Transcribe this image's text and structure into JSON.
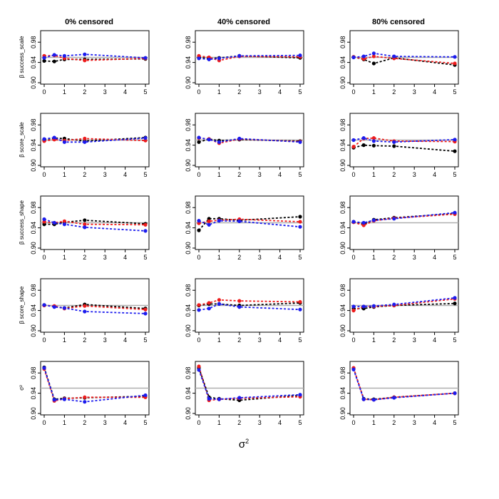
{
  "figure": {
    "col_titles": [
      "0% censored",
      "40% censored",
      "80% censored"
    ],
    "row_labels": [
      "β success_scale",
      "β score_scale",
      "β success_shape",
      "β score_shape",
      "σ²"
    ],
    "x_label_base": "σ",
    "x_label_sup": "2"
  },
  "colors": {
    "series_1": "#000000",
    "series_2": "#ee1c1c",
    "series_3": "#1c1cee",
    "reference": "#b0b0b0"
  },
  "chart_data": {
    "type": "line",
    "x": [
      0,
      0.5,
      1,
      2,
      5
    ],
    "x_ticks": [
      0,
      1,
      2,
      3,
      4,
      5
    ],
    "y_ticks": [
      0.9,
      0.94,
      0.98
    ],
    "xlim": [
      0,
      5
    ],
    "ylim": [
      0.9,
      1.0
    ],
    "reference_line": 0.95,
    "series_colors": [
      "black",
      "red",
      "blue"
    ],
    "panels": [
      {
        "row": 0,
        "col": 0,
        "series": [
          [
            0.943,
            0.942,
            0.946,
            0.946,
            0.947
          ],
          [
            0.953,
            0.954,
            0.948,
            0.944,
            0.948
          ],
          [
            0.949,
            0.955,
            0.953,
            0.956,
            0.949
          ]
        ]
      },
      {
        "row": 0,
        "col": 1,
        "series": [
          [
            0.95,
            0.948,
            0.949,
            0.953,
            0.949
          ],
          [
            0.953,
            0.95,
            0.944,
            0.952,
            0.951
          ],
          [
            0.948,
            0.946,
            0.948,
            0.953,
            0.954
          ]
        ]
      },
      {
        "row": 0,
        "col": 2,
        "series": [
          [
            0.951,
            0.946,
            0.938,
            0.949,
            0.935
          ],
          [
            0.951,
            0.947,
            0.952,
            0.948,
            0.938
          ],
          [
            0.95,
            0.952,
            0.958,
            0.952,
            0.951
          ]
        ]
      },
      {
        "row": 1,
        "col": 0,
        "series": [
          [
            0.951,
            0.954,
            0.953,
            0.948,
            0.955
          ],
          [
            0.948,
            0.951,
            0.949,
            0.953,
            0.949
          ],
          [
            0.952,
            0.955,
            0.946,
            0.946,
            0.954
          ]
        ]
      },
      {
        "row": 1,
        "col": 1,
        "series": [
          [
            0.946,
            0.952,
            0.949,
            0.951,
            0.948
          ],
          [
            0.954,
            0.952,
            0.944,
            0.952,
            0.947
          ],
          [
            0.955,
            0.951,
            0.946,
            0.953,
            0.946
          ]
        ]
      },
      {
        "row": 1,
        "col": 2,
        "series": [
          [
            0.935,
            0.94,
            0.939,
            0.938,
            0.928
          ],
          [
            0.937,
            0.953,
            0.954,
            0.948,
            0.947
          ],
          [
            0.95,
            0.954,
            0.948,
            0.946,
            0.951
          ]
        ]
      },
      {
        "row": 2,
        "col": 0,
        "series": [
          [
            0.947,
            0.947,
            0.951,
            0.955,
            0.948
          ],
          [
            0.952,
            0.95,
            0.953,
            0.947,
            0.946
          ],
          [
            0.957,
            0.95,
            0.947,
            0.941,
            0.934
          ]
        ]
      },
      {
        "row": 2,
        "col": 1,
        "series": [
          [
            0.935,
            0.958,
            0.958,
            0.955,
            0.962
          ],
          [
            0.949,
            0.953,
            0.955,
            0.957,
            0.952
          ],
          [
            0.954,
            0.946,
            0.954,
            0.953,
            0.942
          ]
        ]
      },
      {
        "row": 2,
        "col": 2,
        "series": [
          [
            0.952,
            0.947,
            0.956,
            0.96,
            0.968
          ],
          [
            0.951,
            0.945,
            0.954,
            0.959,
            0.967
          ],
          [
            0.952,
            0.95,
            0.955,
            0.958,
            0.97
          ]
        ]
      },
      {
        "row": 3,
        "col": 0,
        "series": [
          [
            0.951,
            0.948,
            0.945,
            0.952,
            0.944
          ],
          [
            0.95,
            0.949,
            0.944,
            0.949,
            0.942
          ],
          [
            0.951,
            0.947,
            0.945,
            0.938,
            0.934
          ]
        ]
      },
      {
        "row": 3,
        "col": 1,
        "series": [
          [
            0.95,
            0.953,
            0.953,
            0.95,
            0.955
          ],
          [
            0.951,
            0.955,
            0.961,
            0.959,
            0.957
          ],
          [
            0.941,
            0.944,
            0.953,
            0.947,
            0.942
          ]
        ]
      },
      {
        "row": 3,
        "col": 2,
        "series": [
          [
            0.944,
            0.944,
            0.947,
            0.95,
            0.954
          ],
          [
            0.94,
            0.948,
            0.948,
            0.95,
            0.963
          ],
          [
            0.948,
            0.948,
            0.949,
            0.952,
            0.965
          ]
        ]
      },
      {
        "row": 4,
        "col": 0,
        "series": [
          [
            0.991,
            0.928,
            0.93,
            0.931,
            0.934
          ],
          [
            0.988,
            0.925,
            0.929,
            0.932,
            0.932
          ],
          [
            0.99,
            0.927,
            0.928,
            0.923,
            0.936
          ]
        ]
      },
      {
        "row": 4,
        "col": 1,
        "series": [
          [
            0.99,
            0.932,
            0.929,
            0.926,
            0.936
          ],
          [
            0.993,
            0.926,
            0.928,
            0.93,
            0.933
          ],
          [
            0.986,
            0.929,
            0.928,
            0.931,
            0.937
          ]
        ]
      },
      {
        "row": 4,
        "col": 2,
        "series": [
          [
            0.989,
            0.929,
            0.928,
            0.932,
            0.94
          ],
          [
            0.99,
            0.928,
            0.927,
            0.932,
            0.94
          ],
          [
            0.987,
            0.928,
            0.927,
            0.931,
            0.94
          ]
        ]
      }
    ]
  }
}
